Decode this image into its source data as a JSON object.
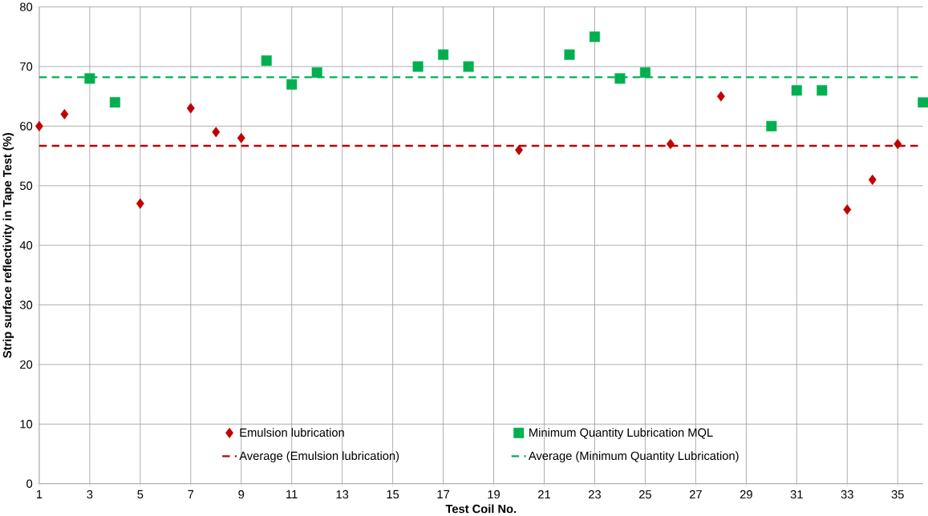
{
  "chart_data": {
    "type": "scatter",
    "xlabel": "Test Coil No.",
    "ylabel": "Strip surface reflectivity in Tape Test (%)",
    "xlim": [
      1,
      36
    ],
    "ylim": [
      0,
      80
    ],
    "xticks": [
      1,
      3,
      5,
      7,
      9,
      11,
      13,
      15,
      17,
      19,
      21,
      23,
      25,
      27,
      29,
      31,
      33,
      35
    ],
    "yticks": [
      0,
      10,
      20,
      30,
      40,
      50,
      60,
      70,
      80
    ],
    "grid": true,
    "legend": "bottom",
    "series": [
      {
        "name": "Emulsion lubrication",
        "color": "#c00000",
        "marker": "diamond",
        "x": [
          1,
          2,
          5,
          7,
          8,
          9,
          20,
          26,
          28,
          33,
          34,
          35
        ],
        "values": [
          60,
          62,
          47,
          63,
          59,
          58,
          56,
          57,
          65,
          46,
          51,
          57
        ]
      },
      {
        "name": "Minimum Quantity Lubrication MQL",
        "color": "#00b050",
        "marker": "square",
        "x": [
          3,
          4,
          10,
          11,
          12,
          16,
          17,
          18,
          22,
          23,
          24,
          25,
          30,
          31,
          32,
          36
        ],
        "values": [
          68,
          64,
          71,
          67,
          69,
          70,
          72,
          70,
          72,
          75,
          68,
          69,
          60,
          66,
          66,
          64
        ]
      },
      {
        "name": "Average (Emulsion lubrication)",
        "type": "line",
        "color": "#c00000",
        "marker": "none",
        "line_style": "dashed",
        "x": [
          1,
          36
        ],
        "values": [
          56.7,
          56.7
        ]
      },
      {
        "name": "Average (Minimum Quantity Lubrication)",
        "type": "line",
        "color": "#00b050",
        "marker": "none",
        "line_style": "dashed",
        "x": [
          1,
          36
        ],
        "values": [
          68.2,
          68.2
        ]
      }
    ]
  }
}
